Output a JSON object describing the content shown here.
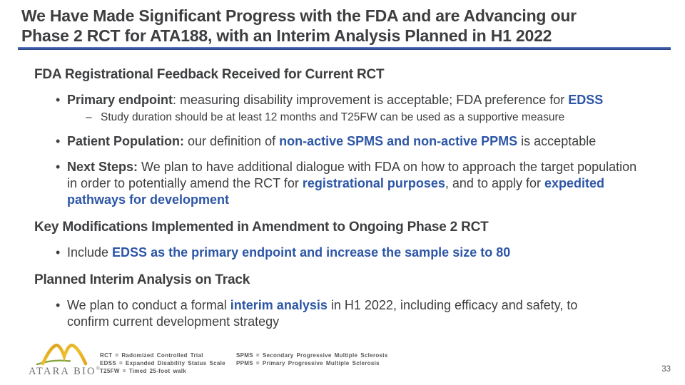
{
  "slide": {
    "title": "We Have Made Significant Progress with the FDA and are Advancing our\nPhase 2 RCT for ATA188, with an Interim Analysis Planned in H1 2022",
    "page_number": "33",
    "colors": {
      "text_dark": "#3d3e40",
      "accent_blue": "#2d56a7",
      "rule_blue": "#3b5aa6",
      "logo_gold": "#e6af1e",
      "logo_green": "#87a63e",
      "logo_gray": "#6e6f71"
    }
  },
  "content": {
    "sections": [
      {
        "heading": "FDA Registrational Feedback Received for Current RCT",
        "bullets": [
          {
            "level": 1,
            "segments": [
              {
                "text": "Primary endpoint",
                "style": "bold"
              },
              {
                "text": ": measuring disability improvement is acceptable; FDA preference for ",
                "style": "normal"
              },
              {
                "text": "EDSS",
                "style": "blue"
              }
            ]
          },
          {
            "level": 2,
            "segments": [
              {
                "text": "Study duration should be at least 12 months and T25FW can be used as a supportive measure",
                "style": "normal"
              }
            ]
          },
          {
            "level": 1,
            "segments": [
              {
                "text": "Patient Population: ",
                "style": "bold"
              },
              {
                "text": "our definition of ",
                "style": "normal"
              },
              {
                "text": "non-active SPMS and non-active PPMS",
                "style": "blue"
              },
              {
                "text": " is acceptable",
                "style": "normal"
              }
            ]
          },
          {
            "level": 1,
            "segments": [
              {
                "text": "Next Steps: ",
                "style": "bold"
              },
              {
                "text": "We plan to have additional dialogue with FDA on how to approach the target population\nin order to potentially amend the RCT for ",
                "style": "normal"
              },
              {
                "text": "registrational purposes",
                "style": "blue"
              },
              {
                "text": ", and to apply for ",
                "style": "normal"
              },
              {
                "text": "expedited\npathways for development",
                "style": "blue"
              }
            ]
          }
        ]
      },
      {
        "heading": "Key Modifications Implemented in Amendment to Ongoing Phase 2 RCT",
        "bullets": [
          {
            "level": 1,
            "segments": [
              {
                "text": "Include ",
                "style": "normal"
              },
              {
                "text": "EDSS as the primary endpoint and increase the sample size to 80",
                "style": "blue"
              }
            ]
          }
        ]
      },
      {
        "heading": "Planned Interim Analysis on Track",
        "bullets": [
          {
            "level": 1,
            "segments": [
              {
                "text": "We plan to conduct a formal ",
                "style": "normal"
              },
              {
                "text": "interim analysis",
                "style": "blue"
              },
              {
                "text": " in H1 2022, including efficacy and safety, to\nconfirm current development strategy",
                "style": "normal"
              }
            ]
          }
        ]
      }
    ]
  },
  "footer": {
    "logo_text": "ATARA BIO",
    "logo_registered": "®",
    "abbreviations_col1": [
      "RCT = Radomized Controlled Trial",
      "EDSS = Expanded Disability Status Scale",
      "T25FW = Timed 25-foot walk"
    ],
    "abbreviations_col2": [
      "SPMS = Secondary Progressive Multiple Sclerosis",
      "PPMS = Primary Progressive Multiple Sclerosis"
    ]
  }
}
